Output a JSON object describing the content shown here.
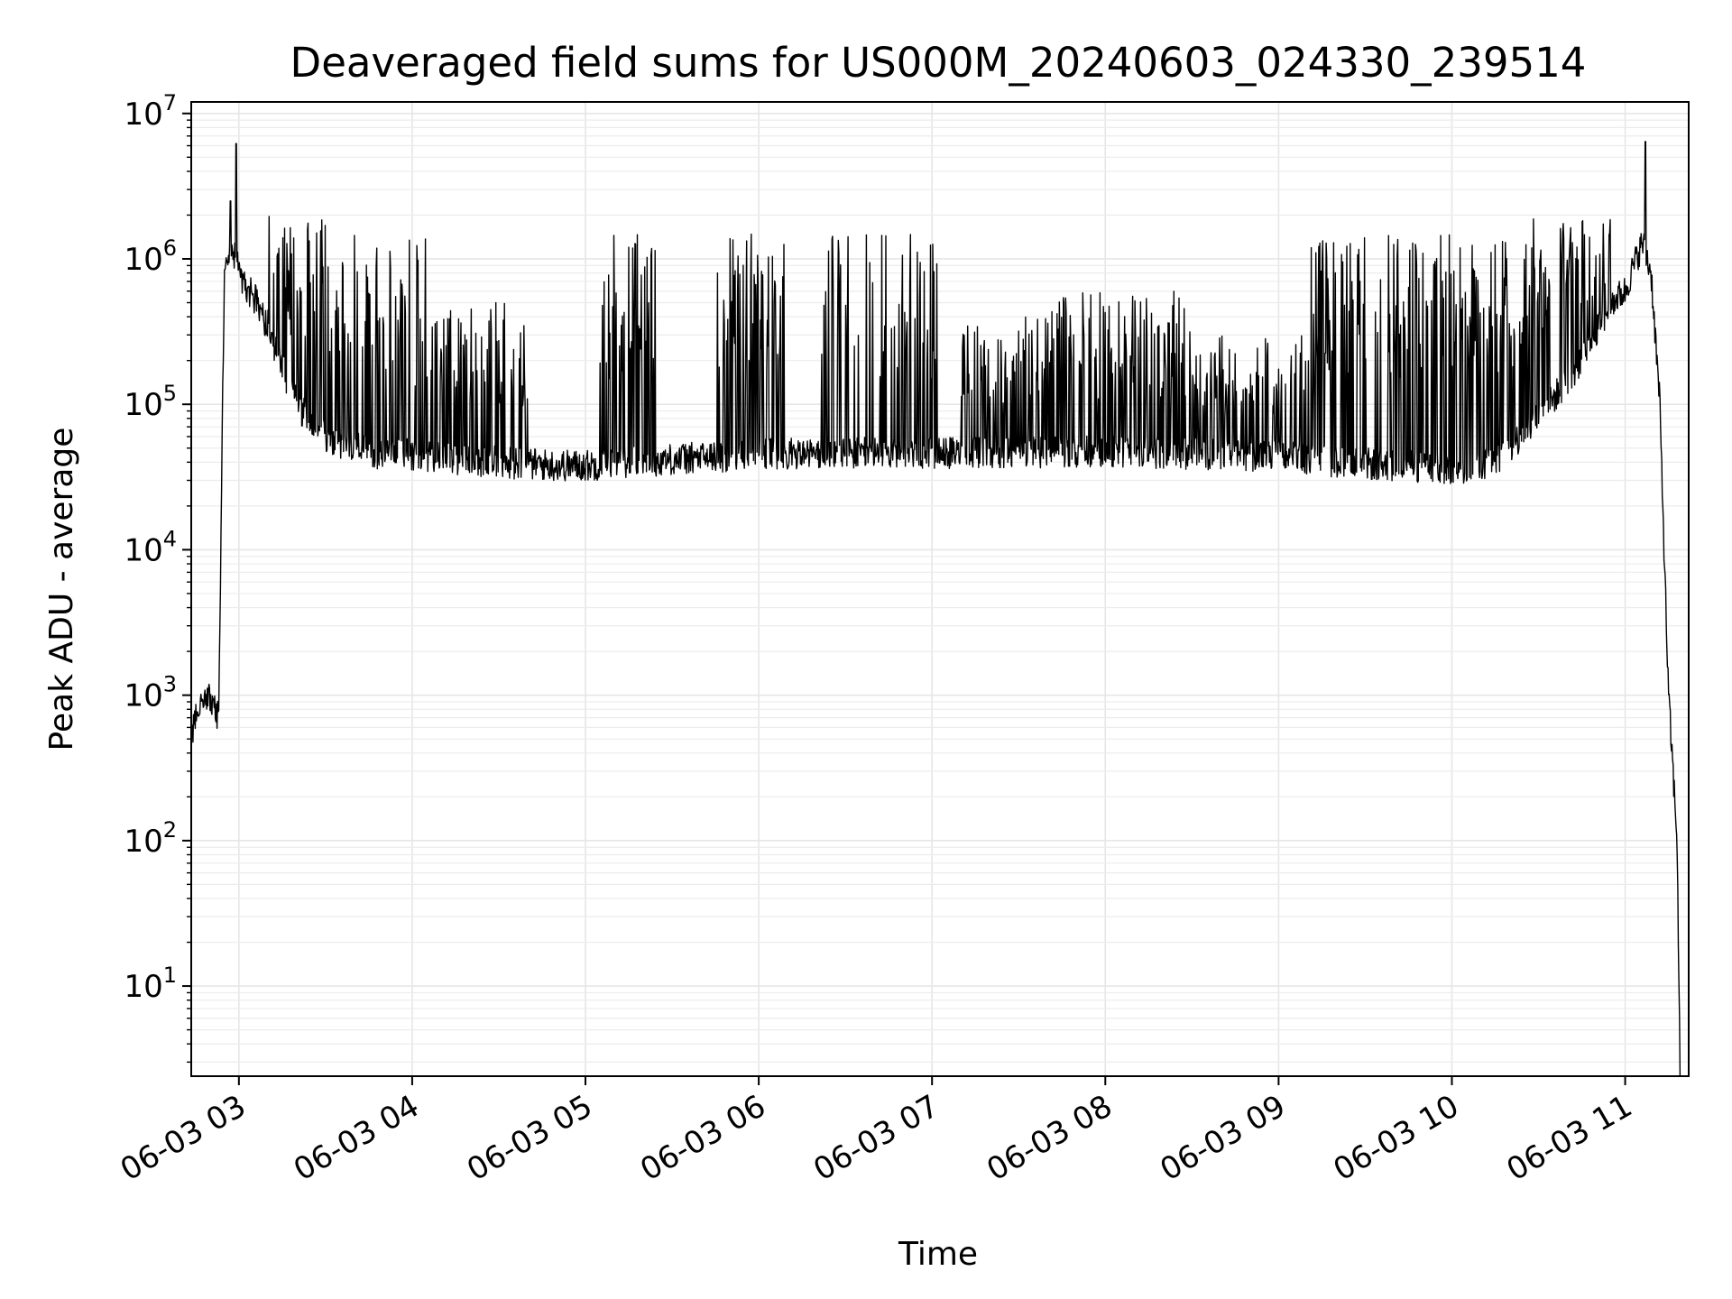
{
  "chart_data": {
    "type": "line",
    "title": "Deaveraged field sums for US000M_20240603_024330_239514",
    "xlabel": "Time",
    "ylabel": "Peak ADU - average",
    "yscale": "log",
    "grid": true,
    "xlim": [
      "2024-06-03 02:43:30",
      "2024-06-03 11:22:00"
    ],
    "ylim": [
      2.4,
      12000000
    ],
    "x_tick_labels": [
      "06-03 03",
      "06-03 04",
      "06-03 05",
      "06-03 06",
      "06-03 07",
      "06-03 08",
      "06-03 09",
      "06-03 10",
      "06-03 11"
    ],
    "y_tick_labels": [
      {
        "base": "10",
        "exp": "1"
      },
      {
        "base": "10",
        "exp": "2"
      },
      {
        "base": "10",
        "exp": "3"
      },
      {
        "base": "10",
        "exp": "4"
      },
      {
        "base": "10",
        "exp": "5"
      },
      {
        "base": "10",
        "exp": "6"
      },
      {
        "base": "10",
        "exp": "7"
      }
    ],
    "series": [
      {
        "color": "#000000",
        "x": [
          "2024-06-03 02:43:30",
          "2024-06-03 02:46",
          "2024-06-03 02:50",
          "2024-06-03 02:53",
          "2024-06-03 02:55",
          "2024-06-03 02:57",
          "2024-06-03 02:59",
          "2024-06-03 03:00",
          "2024-06-03 03:01",
          "2024-06-03 03:05",
          "2024-06-03 03:10",
          "2024-06-03 03:14",
          "2024-06-03 03:20",
          "2024-06-03 03:30",
          "2024-06-03 03:40",
          "2024-06-03 03:50",
          "2024-06-03 04:00",
          "2024-06-03 04:15",
          "2024-06-03 04:30",
          "2024-06-03 04:50",
          "2024-06-03 05:00",
          "2024-06-03 05:30",
          "2024-06-03 06:00",
          "2024-06-03 06:30",
          "2024-06-03 07:00",
          "2024-06-03 07:30",
          "2024-06-03 08:00",
          "2024-06-03 08:30",
          "2024-06-03 09:00",
          "2024-06-03 09:20",
          "2024-06-03 09:40",
          "2024-06-03 10:00",
          "2024-06-03 10:15",
          "2024-06-03 10:30",
          "2024-06-03 10:45",
          "2024-06-03 10:55",
          "2024-06-03 11:00",
          "2024-06-03 11:03",
          "2024-06-03 11:06",
          "2024-06-03 11:09",
          "2024-06-03 11:12",
          "2024-06-03 11:15",
          "2024-06-03 11:18",
          "2024-06-03 11:19"
        ],
        "baseline": [
          500,
          800,
          1000,
          700,
          1000000,
          1200000,
          1000000,
          800000,
          700000,
          550000,
          350000,
          200000,
          100000,
          60000,
          50000,
          45000,
          45000,
          42000,
          40000,
          38000,
          38000,
          42000,
          45000,
          46000,
          46000,
          47000,
          47000,
          46000,
          44000,
          40000,
          38000,
          36000,
          40000,
          80000,
          200000,
          500000,
          600000,
          900000,
          1300000,
          800000,
          100000,
          1000,
          100,
          2.4
        ],
        "spike_bands": [
          {
            "from": "2024-06-03 03:10",
            "to": "2024-06-03 03:45",
            "peak": 2000000
          },
          {
            "from": "2024-06-03 03:45",
            "to": "2024-06-03 04:05",
            "peak": 1400000
          },
          {
            "from": "2024-06-03 04:05",
            "to": "2024-06-03 04:40",
            "peak": 500000
          },
          {
            "from": "2024-06-03 05:05",
            "to": "2024-06-03 05:25",
            "peak": 1500000
          },
          {
            "from": "2024-06-03 05:45",
            "to": "2024-06-03 06:10",
            "peak": 1500000
          },
          {
            "from": "2024-06-03 06:20",
            "to": "2024-06-03 06:40",
            "peak": 1500000
          },
          {
            "from": "2024-06-03 06:40",
            "to": "2024-06-03 07:02",
            "peak": 1500000
          },
          {
            "from": "2024-06-03 07:10",
            "to": "2024-06-03 07:40",
            "peak": 400000
          },
          {
            "from": "2024-06-03 07:40",
            "to": "2024-06-03 08:30",
            "peak": 600000
          },
          {
            "from": "2024-06-03 08:30",
            "to": "2024-06-03 09:10",
            "peak": 300000
          },
          {
            "from": "2024-06-03 09:10",
            "to": "2024-06-03 09:30",
            "peak": 1500000
          },
          {
            "from": "2024-06-03 09:30",
            "to": "2024-06-03 10:25",
            "peak": 1500000
          },
          {
            "from": "2024-06-03 10:25",
            "to": "2024-06-03 10:55",
            "peak": 1900000
          }
        ],
        "spikes": [
          {
            "x": "2024-06-03 02:59",
            "y": 6200000
          },
          {
            "x": "2024-06-03 02:57",
            "y": 2500000
          },
          {
            "x": "2024-06-03 11:07",
            "y": 6400000
          }
        ]
      }
    ]
  }
}
